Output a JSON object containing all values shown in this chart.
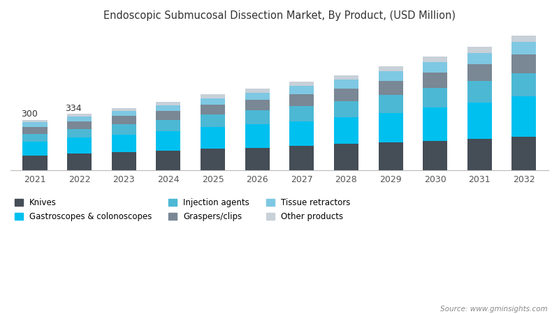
{
  "title": "Endoscopic Submucosal Dissection Market, By Product, (USD Million)",
  "years": [
    2021,
    2022,
    2023,
    2024,
    2025,
    2026,
    2027,
    2028,
    2029,
    2030,
    2031,
    2032
  ],
  "totals_label": {
    "2021": "300",
    "2022": "334"
  },
  "segments": {
    "Knives": {
      "color": "#454d57",
      "values": [
        88,
        98,
        106,
        116,
        126,
        133,
        143,
        155,
        165,
        175,
        188,
        200
      ]
    },
    "Gastroscopes & colonoscopes": {
      "color": "#00c0ef",
      "values": [
        82,
        95,
        106,
        114,
        130,
        140,
        148,
        158,
        175,
        198,
        215,
        238
      ]
    },
    "Injection agents": {
      "color": "#4db8d4",
      "values": [
        46,
        52,
        60,
        67,
        74,
        82,
        90,
        97,
        107,
        117,
        127,
        140
      ]
    },
    "Graspers/clips": {
      "color": "#7a8794",
      "values": [
        42,
        47,
        50,
        55,
        60,
        65,
        72,
        77,
        84,
        92,
        100,
        110
      ]
    },
    "Tissue retractors": {
      "color": "#7ec8e3",
      "values": [
        26,
        28,
        31,
        35,
        39,
        42,
        47,
        52,
        57,
        62,
        68,
        75
      ]
    },
    "Other products": {
      "color": "#c8d0d8",
      "values": [
        16,
        14,
        17,
        19,
        21,
        23,
        25,
        27,
        30,
        33,
        36,
        40
      ]
    }
  },
  "source_text": "Source: www.gminsights.com",
  "background_color": "#ffffff",
  "title_color": "#333333",
  "bar_width": 0.55,
  "ylim": [
    0,
    820
  ],
  "legend_order": [
    "Knives",
    "Gastroscopes & colonoscopes",
    "Injection agents",
    "Graspers/clips",
    "Tissue retractors",
    "Other products"
  ]
}
